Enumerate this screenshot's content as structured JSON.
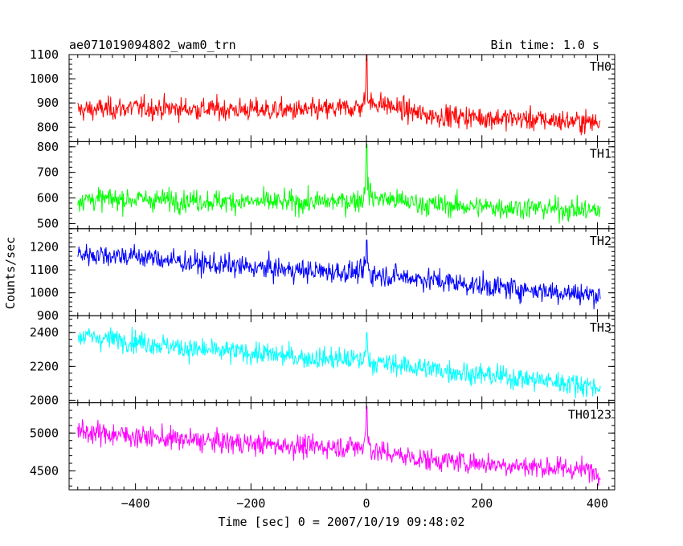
{
  "header": {
    "title": "ae071019094802_wam0_trn",
    "bin_time": "Bin time: 1.0 s"
  },
  "chart_data": {
    "type": "line",
    "xlabel": "Time [sec] 0 = 2007/10/19 09:48:02",
    "ylabel": "Counts/sec",
    "xlim": [
      -515,
      430
    ],
    "x_ticks": [
      -400,
      -200,
      0,
      200,
      400
    ],
    "x_tick_labels": [
      "−400",
      "−200",
      "0",
      "200",
      "400"
    ],
    "series": [
      {
        "name": "TH0",
        "color": "#ff0000",
        "ylim": [
          740,
          1100
        ],
        "y_ticks": [
          800,
          900,
          1000,
          1100
        ],
        "y_tick_labels": [
          "800",
          "900",
          "1000",
          "1100"
        ],
        "x": [
          -500,
          -400,
          -300,
          -200,
          -100,
          -20,
          0,
          20,
          100,
          200,
          300,
          400
        ],
        "values": [
          870,
          880,
          875,
          872,
          868,
          880,
          1100,
          900,
          850,
          840,
          830,
          820
        ]
      },
      {
        "name": "TH1",
        "color": "#00ff00",
        "ylim": [
          480,
          820
        ],
        "y_ticks": [
          500,
          600,
          700,
          800
        ],
        "y_tick_labels": [
          "500",
          "600",
          "700",
          "800"
        ],
        "x": [
          -500,
          -400,
          -300,
          -200,
          -100,
          -20,
          0,
          20,
          100,
          200,
          300,
          400
        ],
        "values": [
          595,
          595,
          590,
          585,
          582,
          590,
          810,
          600,
          575,
          565,
          560,
          550
        ]
      },
      {
        "name": "TH2",
        "color": "#0000ff",
        "ylim": [
          900,
          1280
        ],
        "y_ticks": [
          900,
          1000,
          1100,
          1200
        ],
        "y_tick_labels": [
          "900",
          "1000",
          "1100",
          "1200"
        ],
        "x": [
          -500,
          -400,
          -300,
          -200,
          -100,
          -20,
          0,
          20,
          100,
          200,
          300,
          400
        ],
        "values": [
          1170,
          1160,
          1130,
          1110,
          1095,
          1090,
          1230,
          1080,
          1060,
          1030,
          1010,
          990
        ]
      },
      {
        "name": "TH3",
        "color": "#00ffff",
        "ylim": [
          1985,
          2500
        ],
        "y_ticks": [
          2000,
          2200,
          2400
        ],
        "y_tick_labels": [
          "2000",
          "2200",
          "2400"
        ],
        "x": [
          -500,
          -400,
          -300,
          -200,
          -100,
          -20,
          0,
          20,
          100,
          200,
          300,
          400
        ],
        "values": [
          2380,
          2350,
          2300,
          2280,
          2250,
          2240,
          2400,
          2220,
          2190,
          2150,
          2120,
          2080
        ]
      },
      {
        "name": "TH0123",
        "color": "#ff00ff",
        "ylim": [
          4250,
          5400
        ],
        "y_ticks": [
          4500,
          5000
        ],
        "y_tick_labels": [
          "4500",
          "5000"
        ],
        "x": [
          -500,
          -400,
          -300,
          -200,
          -100,
          -20,
          0,
          20,
          100,
          200,
          300,
          400
        ],
        "values": [
          5020,
          4960,
          4900,
          4860,
          4820,
          4820,
          5350,
          4750,
          4650,
          4600,
          4550,
          4500
        ]
      }
    ]
  }
}
